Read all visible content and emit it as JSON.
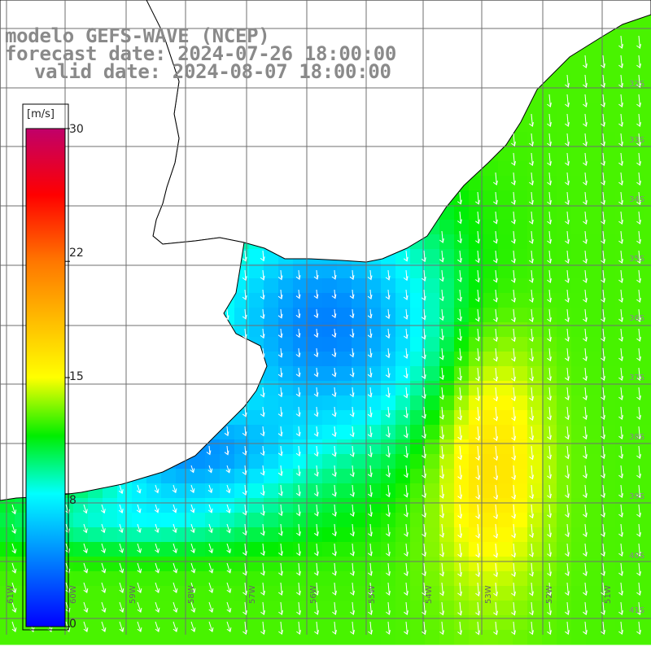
{
  "title": {
    "line1": "modelo GEFS-WAVE (NCEP)",
    "line2": "forecast date: 2024-07-26 18:00:00",
    "line3": "valid date: 2024-08-07 18:00:00"
  },
  "colorbar": {
    "unit": "[m/s]",
    "ticks": [
      {
        "value": 30,
        "label": "30"
      },
      {
        "value": 22,
        "label": "22"
      },
      {
        "value": 15,
        "label": "15"
      },
      {
        "value": 8,
        "label": "8"
      },
      {
        "value": 0,
        "label": "0"
      }
    ],
    "range": [
      0,
      30
    ],
    "stops": [
      {
        "value": 0,
        "color": "#0000ff"
      },
      {
        "value": 8,
        "color": "#00ffff"
      },
      {
        "value": 11.5,
        "color": "#00ee00"
      },
      {
        "value": 15,
        "color": "#ffff00"
      },
      {
        "value": 22,
        "color": "#ff7700"
      },
      {
        "value": 26,
        "color": "#ff0000"
      },
      {
        "value": 30,
        "color": "#c0006a"
      }
    ]
  },
  "map": {
    "parameter": "wind speed",
    "lon_labels": [
      "61W",
      "60W",
      "59W",
      "58W",
      "57W",
      "56W",
      "55W",
      "54W",
      "53W",
      "52W",
      "51W"
    ],
    "lat_labels": [
      "32S",
      "33S",
      "34S",
      "35S",
      "36S",
      "37S",
      "38S",
      "39S",
      "40S",
      "41S"
    ],
    "wind_direction": "from the north-northeast, arrows pointing toward south-southwest",
    "regions": {
      "coastal_estuary": "blue, about 3-6 m/s",
      "nearshore_band": "cyan, about 7-9 m/s",
      "open_ocean": "green, about 10-14 m/s",
      "southeast_maximum": "yellow to orange, about 15-18 m/s"
    },
    "land_color": "#ffffff",
    "grid_color": "#6f6f6f",
    "arrow_color": "#ffffff"
  }
}
